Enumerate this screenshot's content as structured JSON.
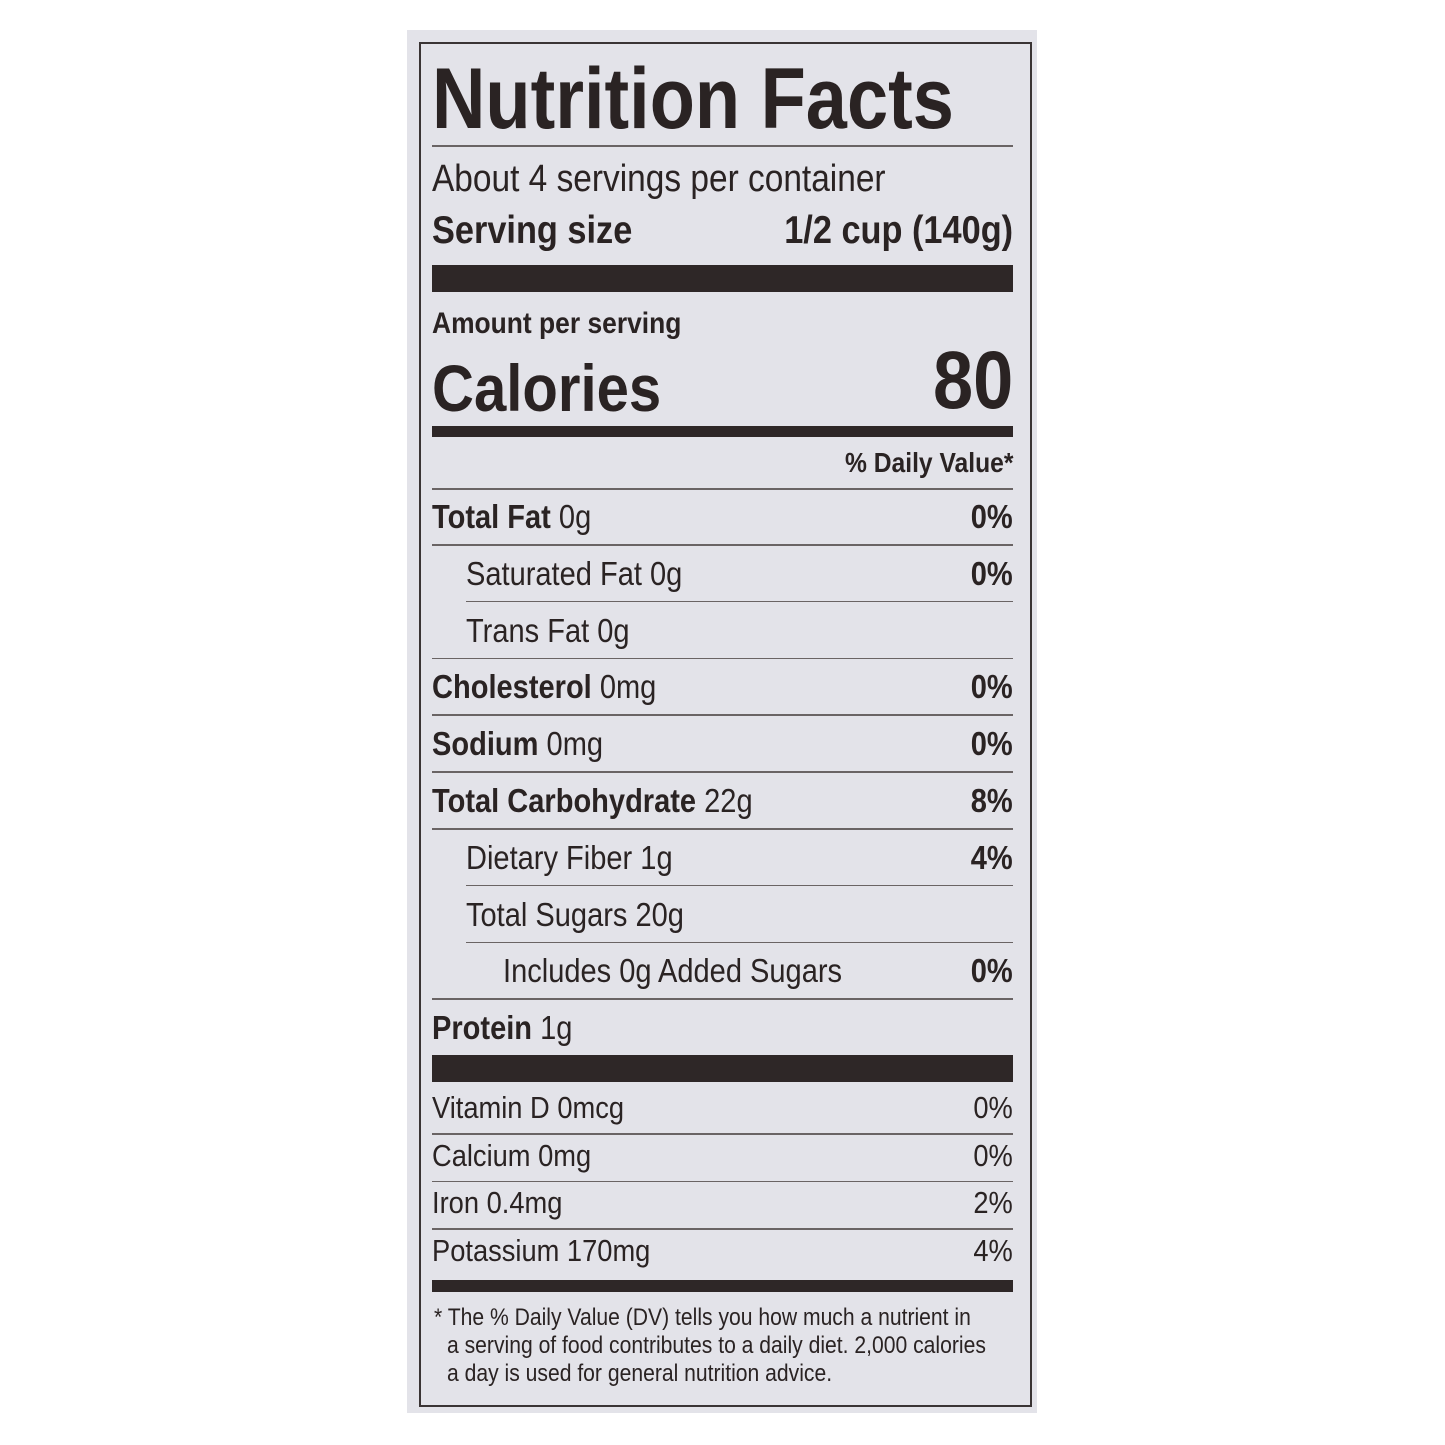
{
  "title": "Nutrition Facts",
  "servings_per_container": "About 4 servings per container",
  "serving_size_label": "Serving size",
  "serving_size_value": "1/2 cup (140g)",
  "amount_per_serving": "Amount per serving",
  "calories_label": "Calories",
  "calories_value": "80",
  "dv_header": "% Daily Value*",
  "nutrients": [
    {
      "name": "Total Fat",
      "amount": "0g",
      "dv": "0%",
      "bold": true,
      "indent": 0
    },
    {
      "name": "Saturated Fat",
      "amount": "0g",
      "dv": "0%",
      "bold": false,
      "indent": 1
    },
    {
      "name": "Trans Fat",
      "amount": "0g",
      "dv": "",
      "bold": false,
      "indent": 1
    },
    {
      "name": "Cholesterol",
      "amount": "0mg",
      "dv": "0%",
      "bold": true,
      "indent": 0
    },
    {
      "name": "Sodium",
      "amount": "0mg",
      "dv": "0%",
      "bold": true,
      "indent": 0
    },
    {
      "name": "Total Carbohydrate",
      "amount": "22g",
      "dv": "8%",
      "bold": true,
      "indent": 0
    },
    {
      "name": "Dietary Fiber",
      "amount": "1g",
      "dv": "4%",
      "bold": false,
      "indent": 1
    },
    {
      "name": "Total Sugars",
      "amount": "20g",
      "dv": "",
      "bold": false,
      "indent": 1
    },
    {
      "name": "Includes 0g Added Sugars",
      "amount": "",
      "dv": "0%",
      "bold": false,
      "indent": 2
    },
    {
      "name": "Protein",
      "amount": "1g",
      "dv": "",
      "bold": true,
      "indent": 0
    }
  ],
  "vitamins": [
    {
      "name": "Vitamin D 0mcg",
      "dv": "0%"
    },
    {
      "name": "Calcium 0mg",
      "dv": "0%"
    },
    {
      "name": "Iron 0.4mg",
      "dv": "2%"
    },
    {
      "name": "Potassium 170mg",
      "dv": "4%"
    }
  ],
  "footnote": [
    "* The % Daily Value (DV) tells you how much a nutrient in",
    "a serving of food contributes to a daily diet. 2,000 calories",
    "a day is used for general nutrition advice."
  ],
  "colors": {
    "background": "#e3e3e9",
    "ink": "#2a2323"
  }
}
